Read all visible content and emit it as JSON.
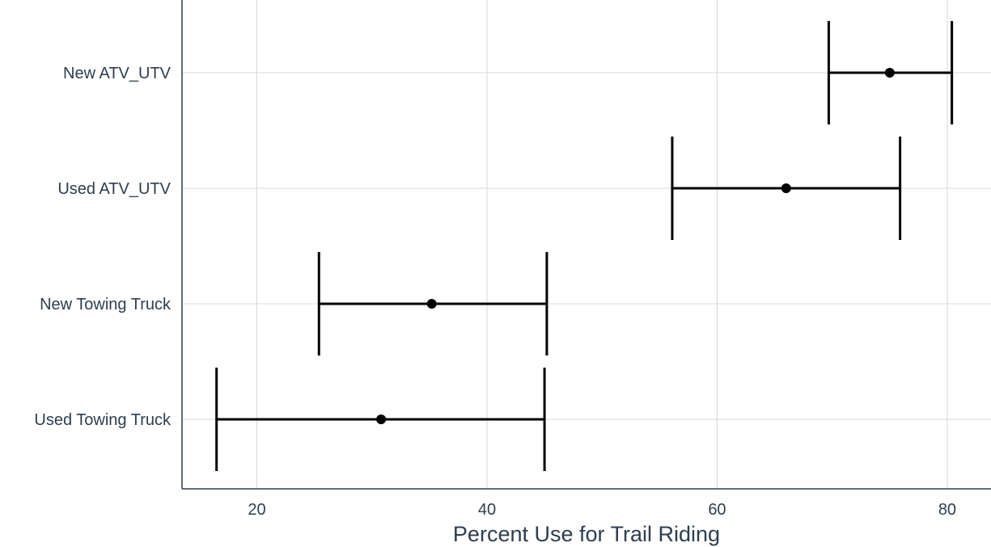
{
  "chart_data": {
    "type": "scatter",
    "subtype": "point-with-errorbars",
    "orientation": "horizontal",
    "categories": [
      "New ATV_UTV",
      "Used ATV_UTV",
      "New Towing Truck",
      "Used Towing Truck"
    ],
    "estimates": [
      75.0,
      66.0,
      35.2,
      30.8
    ],
    "lower": [
      69.7,
      56.1,
      25.4,
      16.5
    ],
    "upper": [
      80.4,
      75.9,
      45.2,
      45.0
    ],
    "xlabel": "Percent Use for Trail Riding",
    "ylabel": "",
    "xlim": [
      13.5,
      83.8
    ],
    "xticks": [
      20,
      40,
      60,
      80
    ],
    "grid": true,
    "legend": "none"
  },
  "colors": {
    "marks": "#000000",
    "grid": "#d9d9d9",
    "axis": "#2c3e50",
    "text": "#2c3e50"
  }
}
